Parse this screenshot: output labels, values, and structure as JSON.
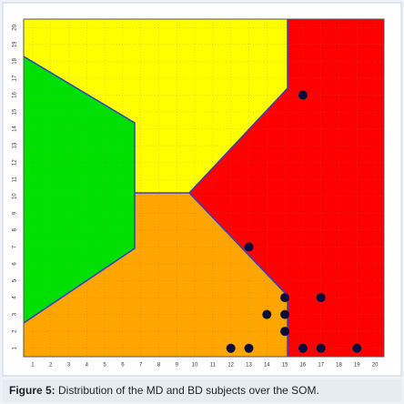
{
  "chart_data": {
    "type": "scatter",
    "x": [
      12,
      13,
      16,
      17,
      19,
      15,
      15,
      14,
      15,
      17,
      13,
      16
    ],
    "y": [
      1,
      1,
      1,
      1,
      1,
      2,
      3,
      3,
      4,
      4,
      7,
      16
    ],
    "color": "#0b0b3b",
    "xlim": [
      0.5,
      20.5
    ],
    "ylim": [
      0.5,
      20.5
    ],
    "xticks": [
      1,
      2,
      3,
      4,
      5,
      6,
      7,
      8,
      9,
      10,
      11,
      12,
      13,
      14,
      15,
      16,
      17,
      18,
      19,
      20
    ],
    "yticks": [
      1,
      2,
      3,
      4,
      5,
      6,
      7,
      8,
      9,
      10,
      11,
      12,
      13,
      14,
      15,
      16,
      17,
      18,
      19,
      20
    ],
    "grid": true
  },
  "caption": {
    "label": "Figure 5:",
    "text": "Distribution of the MD and BD subjects over the SOM."
  }
}
